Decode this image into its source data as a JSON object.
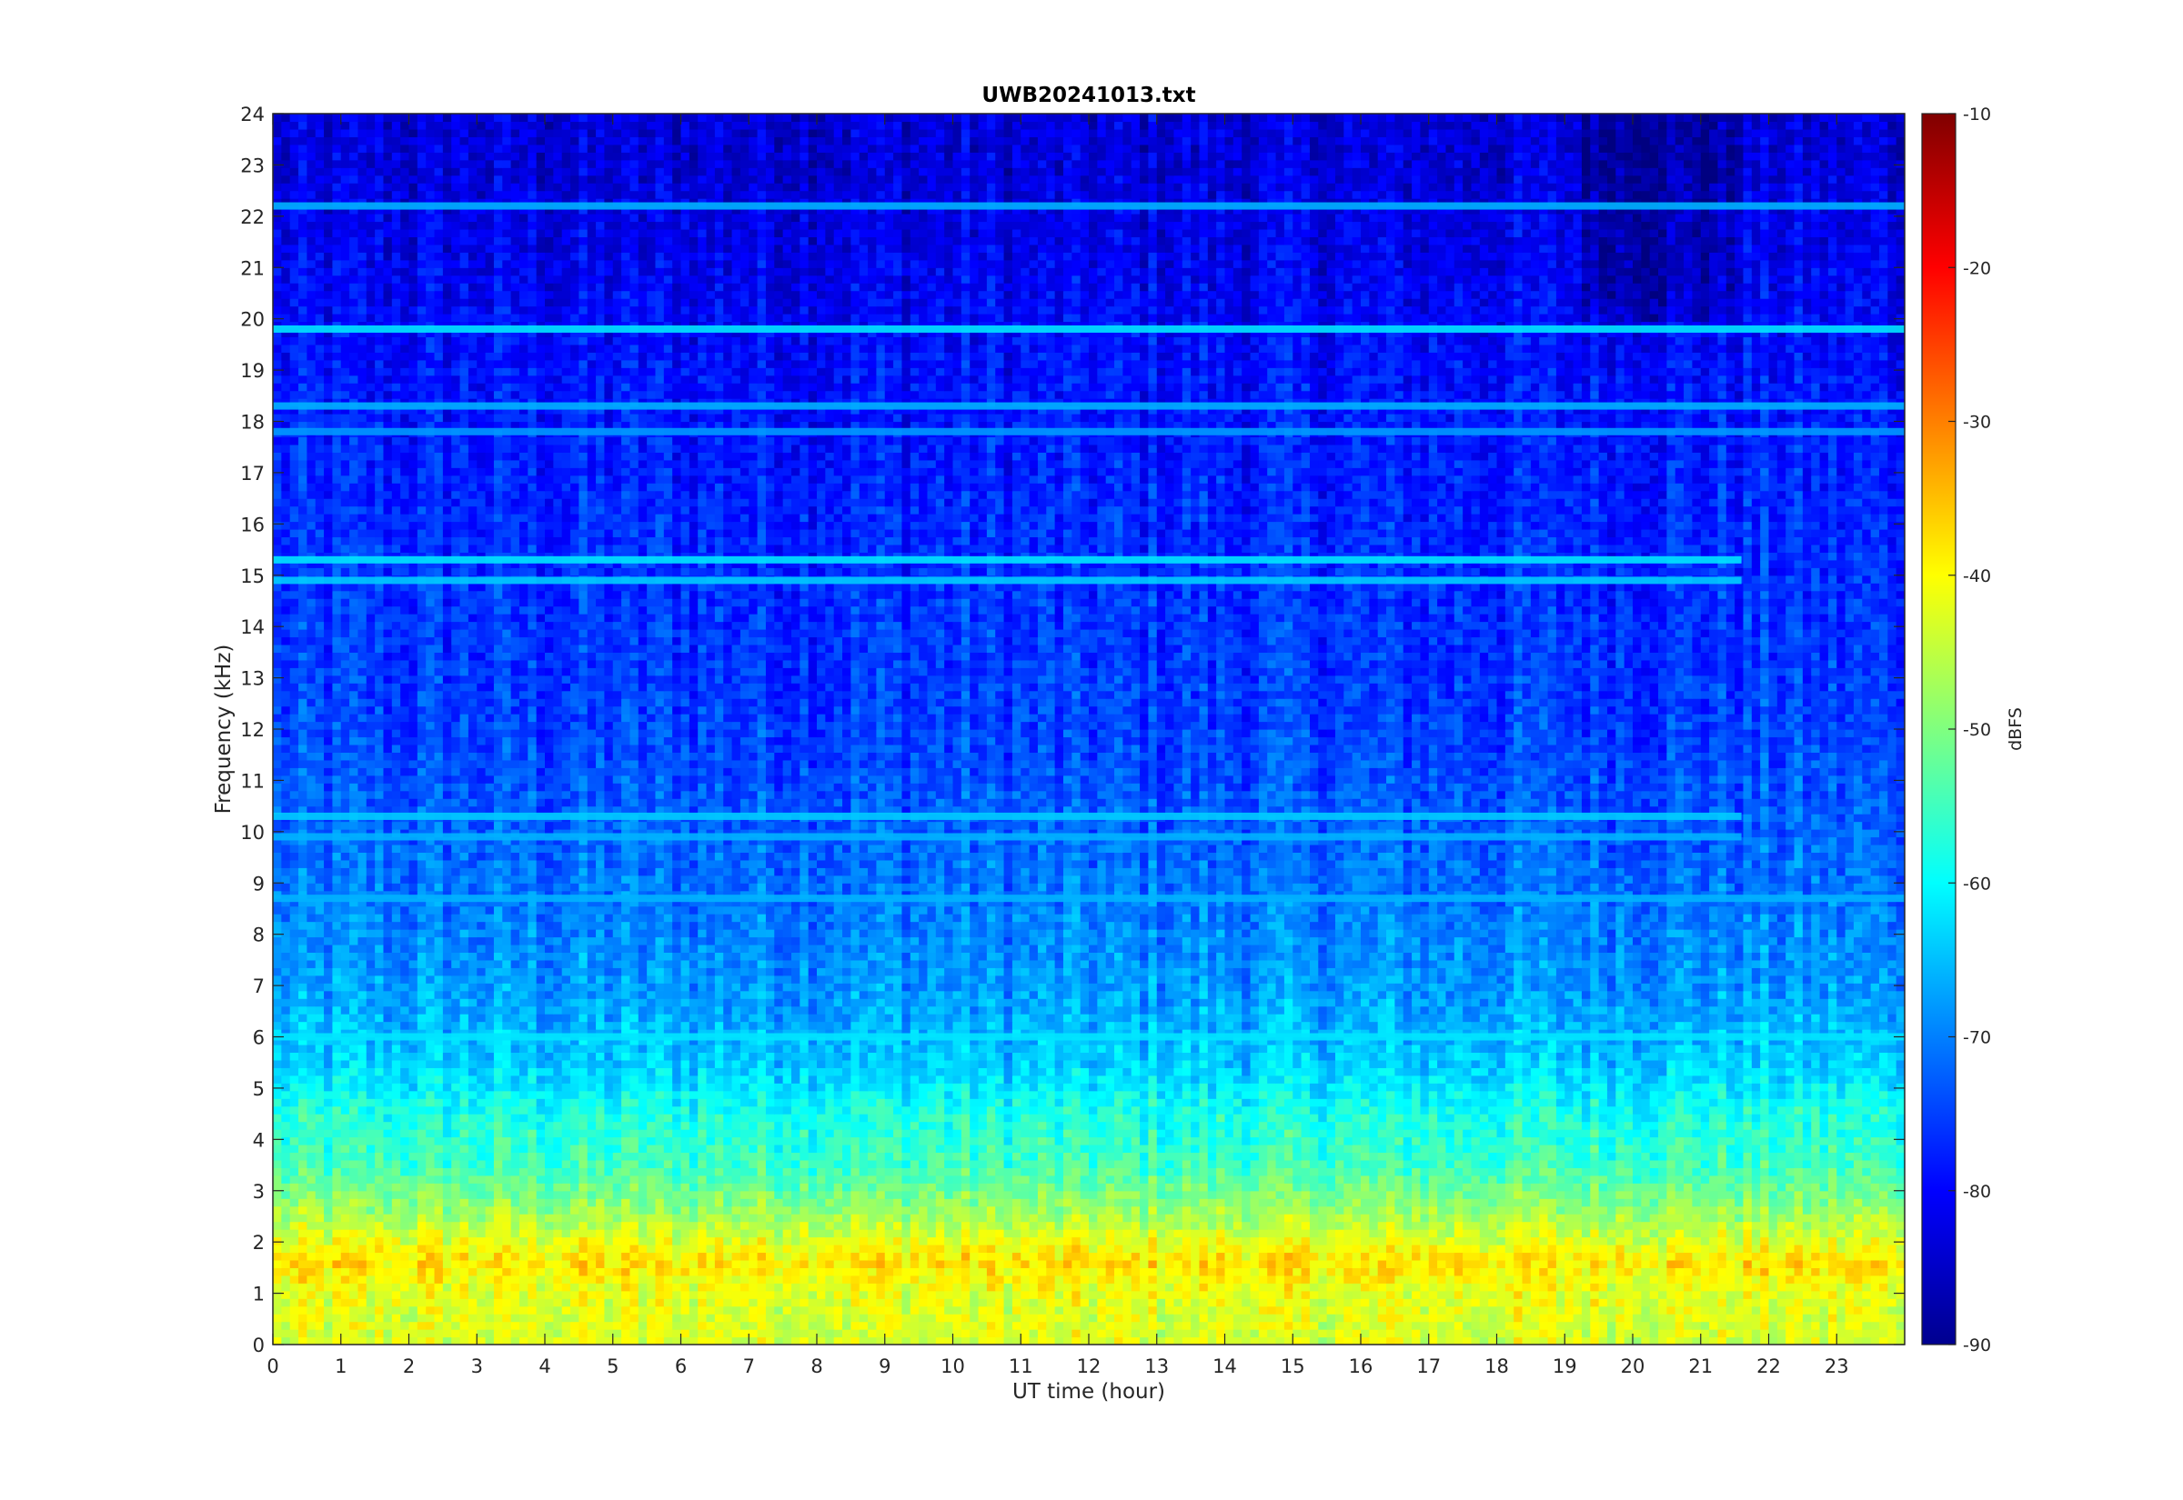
{
  "chart_data": {
    "type": "heatmap",
    "title": "UWB20241013.txt",
    "xlabel": "UT time (hour)",
    "ylabel": "Frequency (kHz)",
    "xlim": [
      0,
      24
    ],
    "ylim": [
      0,
      24
    ],
    "x_ticks": [
      "0",
      "1",
      "2",
      "3",
      "4",
      "5",
      "6",
      "7",
      "8",
      "9",
      "10",
      "11",
      "12",
      "13",
      "14",
      "15",
      "16",
      "17",
      "18",
      "19",
      "20",
      "21",
      "22",
      "23"
    ],
    "y_ticks": [
      "0",
      "1",
      "2",
      "3",
      "4",
      "5",
      "6",
      "7",
      "8",
      "9",
      "10",
      "11",
      "12",
      "13",
      "14",
      "15",
      "16",
      "17",
      "18",
      "19",
      "20",
      "21",
      "22",
      "23",
      "24"
    ],
    "colorbar": {
      "label": "dBFS",
      "range": [
        -90,
        -10
      ],
      "ticks": [
        "-10",
        "-20",
        "-30",
        "-40",
        "-50",
        "-60",
        "-70",
        "-80",
        "-90"
      ],
      "colormap": "jet"
    },
    "background_levels_dbfs": [
      {
        "freq_khz": 0.2,
        "level": -43
      },
      {
        "freq_khz": 1.0,
        "level": -42
      },
      {
        "freq_khz": 1.6,
        "level": -38
      },
      {
        "freq_khz": 2.5,
        "level": -47
      },
      {
        "freq_khz": 3.5,
        "level": -55
      },
      {
        "freq_khz": 4.5,
        "level": -58
      },
      {
        "freq_khz": 5.5,
        "level": -64
      },
      {
        "freq_khz": 7,
        "level": -68
      },
      {
        "freq_khz": 9,
        "level": -71
      },
      {
        "freq_khz": 12,
        "level": -75
      },
      {
        "freq_khz": 16,
        "level": -77
      },
      {
        "freq_khz": 19,
        "level": -79
      },
      {
        "freq_khz": 21,
        "level": -81
      },
      {
        "freq_khz": 23,
        "level": -83
      }
    ],
    "persistent_lines": [
      {
        "freq_khz": 19.8,
        "level": -62,
        "from_hour": 0,
        "to_hour": 24
      },
      {
        "freq_khz": 18.3,
        "level": -66,
        "from_hour": 0,
        "to_hour": 24
      },
      {
        "freq_khz": 22.2,
        "level": -66,
        "from_hour": 0,
        "to_hour": 24
      },
      {
        "freq_khz": 15.3,
        "level": -62,
        "from_hour": 0,
        "to_hour": 21.6
      },
      {
        "freq_khz": 14.9,
        "level": -64,
        "from_hour": 0,
        "to_hour": 21.6
      },
      {
        "freq_khz": 10.3,
        "level": -64,
        "from_hour": 0,
        "to_hour": 21.6
      },
      {
        "freq_khz": 9.9,
        "level": -66,
        "from_hour": 0,
        "to_hour": 21.6
      },
      {
        "freq_khz": 17.8,
        "level": -68,
        "from_hour": 0,
        "to_hour": 24
      },
      {
        "freq_khz": 8.7,
        "level": -66,
        "from_hour": 0,
        "to_hour": 24
      },
      {
        "freq_khz": 6.0,
        "level": -62,
        "from_hour": 0,
        "to_hour": 24
      }
    ]
  }
}
